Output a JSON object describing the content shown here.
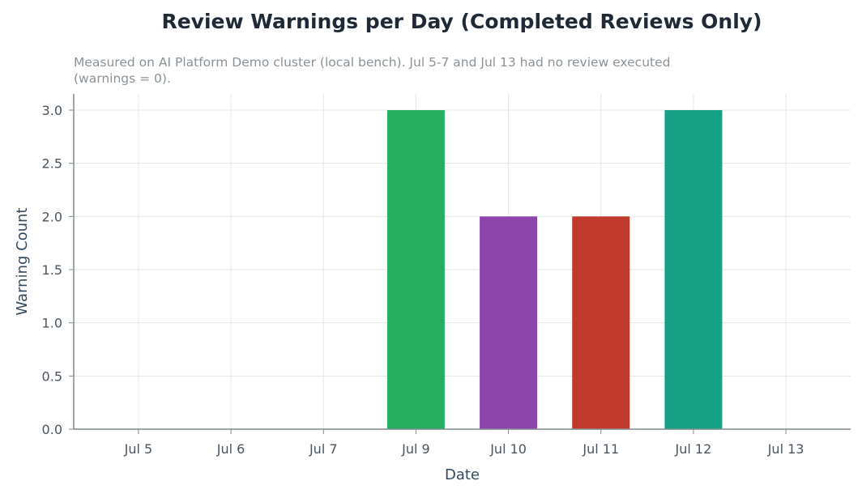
{
  "chart_data": {
    "type": "bar",
    "title": "Review Warnings per Day (Completed Reviews Only)",
    "subtitle": "Measured on AI Platform Demo cluster (local bench). Jul 5-7 and Jul 13 had no review executed (warnings = 0).",
    "xlabel": "Date",
    "ylabel": "Warning Count",
    "categories": [
      "Jul 5",
      "Jul 6",
      "Jul 7",
      "Jul 9",
      "Jul 10",
      "Jul 11",
      "Jul 12",
      "Jul 13"
    ],
    "values": [
      0,
      0,
      0,
      3,
      2,
      2,
      3,
      0
    ],
    "colors": [
      "#27ae60",
      "#27ae60",
      "#27ae60",
      "#27ae60",
      "#8e44ad",
      "#c0392b",
      "#16a085",
      "#16a085"
    ],
    "ylim": [
      0,
      3.0
    ],
    "yticks": [
      0.0,
      0.5,
      1.0,
      1.5,
      2.0,
      2.5,
      3.0
    ],
    "ytick_labels": [
      "0.0",
      "0.5",
      "1.0",
      "1.5",
      "2.0",
      "2.5",
      "3.0"
    ],
    "grid": true,
    "legend": "none"
  }
}
